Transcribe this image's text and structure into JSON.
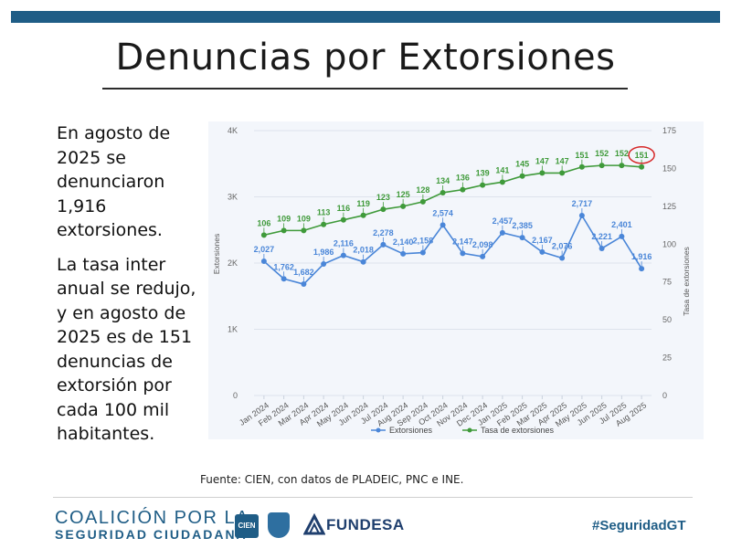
{
  "title": "Denuncias por Extorsiones",
  "left_text": {
    "p1": "En agosto de 2025 se denunciaron 1,916 extorsiones.",
    "p2": "La tasa inter anual se redujo, y en agosto de 2025 es de 151 denuncias de extorsión por cada 100 mil habitantes."
  },
  "source": "Fuente: CIEN, con datos de PLADEIC, PNC e INE.",
  "footer": {
    "coalicion_line1": "COALICIÓN POR LA",
    "coalicion_line2": "SEGURIDAD CIUDADANA",
    "cien_logo": "CIEN",
    "fundesa": "FUNDESA",
    "hashtag": "#SeguridadGT"
  },
  "colors": {
    "topbar": "#1f5d86",
    "extorsiones": "#4a86d8",
    "tasa": "#3f9a3a",
    "highlight": "#d62828"
  },
  "chart_data": {
    "type": "line",
    "categories": [
      "Jan 2024",
      "Feb 2024",
      "Mar 2024",
      "Apr 2024",
      "May 2024",
      "Jun 2024",
      "Jul 2024",
      "Aug 2024",
      "Sep 2024",
      "Oct 2024",
      "Nov 2024",
      "Dec 2024",
      "Jan 2025",
      "Feb 2025",
      "Mar 2025",
      "Apr 2025",
      "May 2025",
      "Jun 2025",
      "Jul 2025",
      "Aug 2025"
    ],
    "series": [
      {
        "name": "Extorsiones",
        "axis": "left",
        "color": "#4a86d8",
        "values": [
          2027,
          1762,
          1682,
          1986,
          2116,
          2018,
          2278,
          2140,
          2158,
          2574,
          2147,
          2098,
          2457,
          2385,
          2167,
          2076,
          2717,
          2221,
          2401,
          1916
        ],
        "labels": [
          "2,027",
          "1,762",
          "1,682",
          "1,986",
          "2,116",
          "2,018",
          "2,278",
          "2,140",
          "2,158",
          "2,574",
          "2,147",
          "2,098",
          "2,457",
          "2,385",
          "2,167",
          "2,076",
          "2,717",
          "2,221",
          "2,401",
          "1,916"
        ]
      },
      {
        "name": "Tasa de extorsiones",
        "axis": "right",
        "color": "#3f9a3a",
        "values": [
          106,
          109,
          109,
          113,
          116,
          119,
          123,
          125,
          128,
          134,
          136,
          139,
          141,
          145,
          147,
          147,
          151,
          152,
          152,
          151
        ],
        "labels": [
          "106",
          "109",
          "109",
          "113",
          "116",
          "119",
          "123",
          "125",
          "128",
          "134",
          "136",
          "139",
          "141",
          "145",
          "147",
          "147",
          "151",
          "152",
          "152",
          "151"
        ]
      }
    ],
    "y_left": {
      "label": "Extorsiones",
      "ylim": [
        0,
        4000
      ],
      "ticks": [
        0,
        1000,
        2000,
        3000,
        4000
      ],
      "tick_labels": [
        "0",
        "1K",
        "2K",
        "3K",
        "4K"
      ]
    },
    "y_right": {
      "label": "Tasa de extorsiones",
      "ylim": [
        0,
        175
      ],
      "ticks": [
        0,
        25,
        50,
        75,
        100,
        125,
        150,
        175
      ],
      "tick_labels": [
        "0",
        "25",
        "50",
        "75",
        "100",
        "125",
        "150",
        "175"
      ]
    },
    "highlight_point": {
      "series": "Tasa de extorsiones",
      "index": 19
    },
    "legend": {
      "position": "bottom",
      "entries": [
        "Extorsiones",
        "Tasa de extorsiones"
      ]
    },
    "grid": true
  }
}
